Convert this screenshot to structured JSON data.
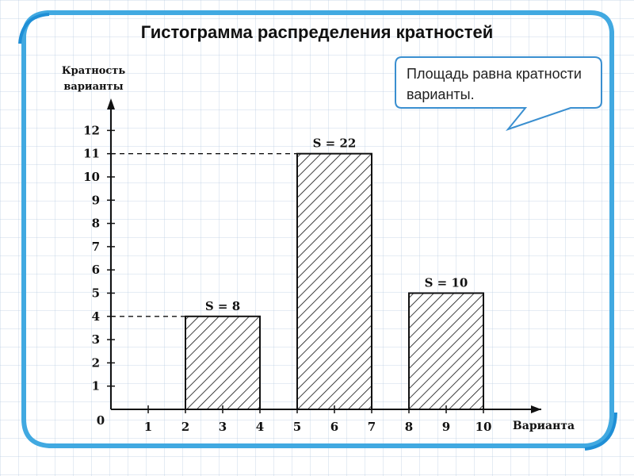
{
  "slide": {
    "title": "Гистограмма распределения кратностей",
    "callout": "Площадь равна кратности варианты."
  },
  "colors": {
    "frame": "#41a9e1",
    "callout_border": "#3a8fd0",
    "ink": "#111111"
  },
  "chart_data": {
    "type": "bar",
    "subtype": "histogram",
    "ylabel_line1": "Кратность",
    "ylabel_line2": "варианты",
    "xlabel": "Варианта",
    "origin_label": "0",
    "x_ticks": [
      1,
      2,
      3,
      4,
      5,
      6,
      7,
      8,
      9,
      10
    ],
    "y_ticks": [
      1,
      2,
      3,
      4,
      5,
      6,
      7,
      8,
      9,
      10,
      11,
      12
    ],
    "xlim": [
      0,
      11.5
    ],
    "ylim": [
      0,
      13
    ],
    "bars": [
      {
        "x_start": 2,
        "x_end": 4,
        "height": 4,
        "label": "S = 8"
      },
      {
        "x_start": 5,
        "x_end": 7,
        "height": 11,
        "label": "S = 22"
      },
      {
        "x_start": 8,
        "x_end": 10,
        "height": 5,
        "label": "S = 10"
      }
    ],
    "dashed_reference_levels": [
      4,
      11
    ],
    "fill_pattern": "diagonal-hatch",
    "grid": false
  }
}
